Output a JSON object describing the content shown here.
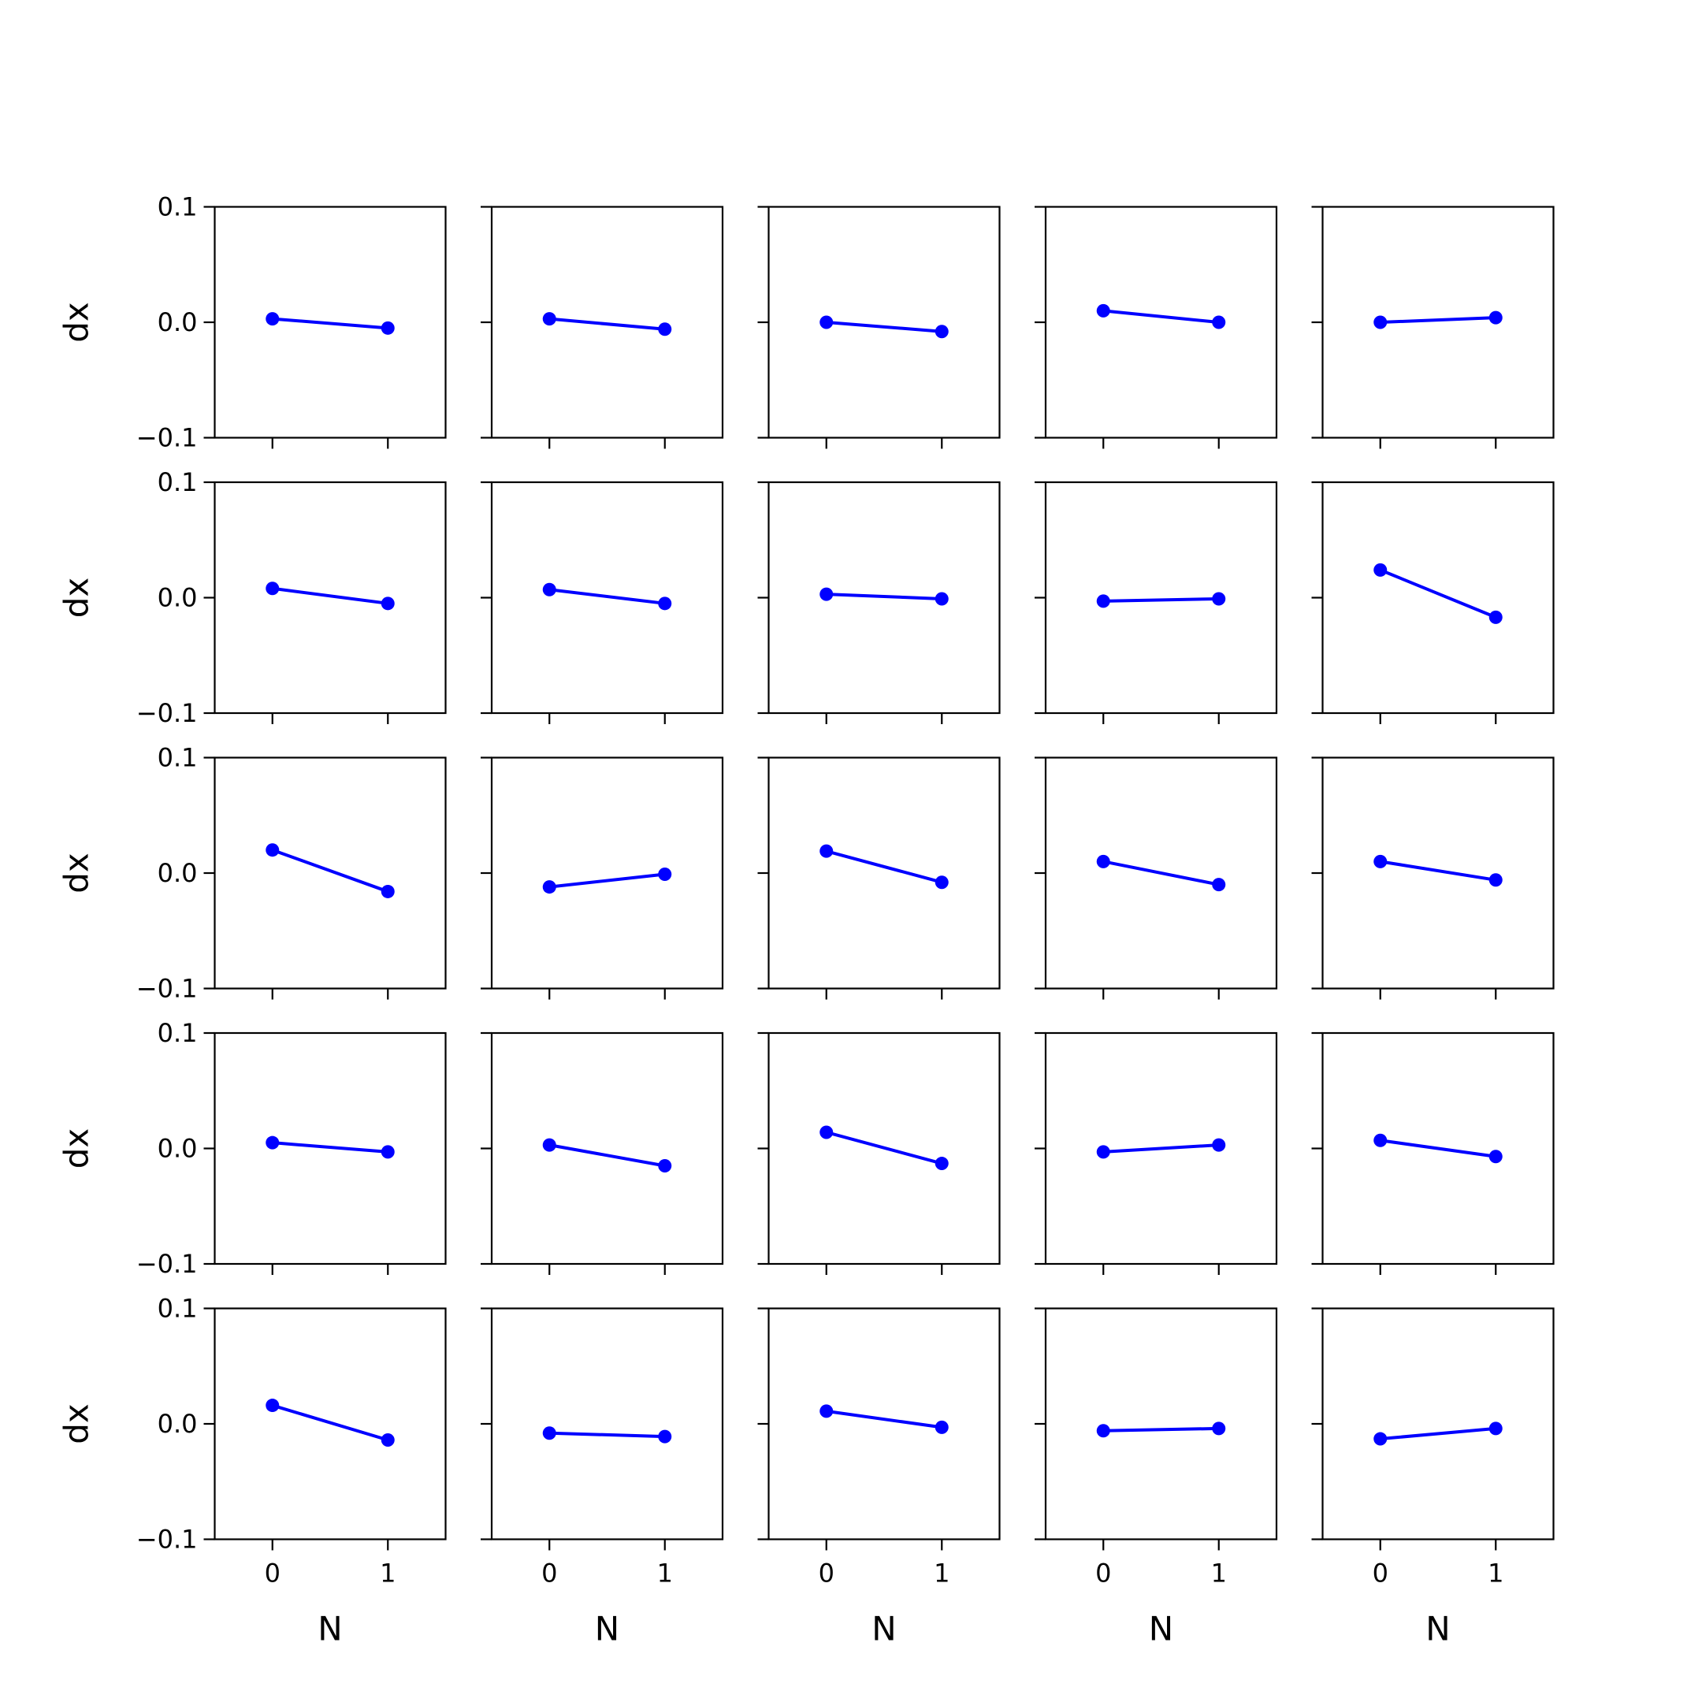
{
  "chart_data": {
    "type": "line",
    "layout": "5x5 grid of subplots",
    "x": [
      0,
      1
    ],
    "xticks": [
      "0",
      "1"
    ],
    "yticks": [
      "0.1",
      "0.0",
      "−0.1"
    ],
    "ytick_values": [
      0.1,
      0.0,
      -0.1
    ],
    "xlim": [
      -0.5,
      1.5
    ],
    "ylim": [
      -0.1,
      0.1
    ],
    "xlabel": "N",
    "ylabel": "dx",
    "grid": false,
    "line_color": "#0000ff",
    "marker": "circle",
    "subplots": [
      [
        [
          0.003,
          -0.005
        ],
        [
          0.003,
          -0.006
        ],
        [
          0.0,
          -0.008
        ],
        [
          0.01,
          0.0
        ],
        [
          0.0,
          0.004
        ]
      ],
      [
        [
          0.008,
          -0.005
        ],
        [
          0.007,
          -0.005
        ],
        [
          0.003,
          -0.001
        ],
        [
          -0.003,
          -0.001
        ],
        [
          0.024,
          -0.017
        ]
      ],
      [
        [
          0.02,
          -0.016
        ],
        [
          -0.012,
          -0.001
        ],
        [
          0.019,
          -0.008
        ],
        [
          0.01,
          -0.01
        ],
        [
          0.01,
          -0.006
        ]
      ],
      [
        [
          0.005,
          -0.003
        ],
        [
          0.003,
          -0.015
        ],
        [
          0.014,
          -0.013
        ],
        [
          -0.003,
          0.003
        ],
        [
          0.007,
          -0.007
        ]
      ],
      [
        [
          0.016,
          -0.014
        ],
        [
          -0.008,
          -0.011
        ],
        [
          0.011,
          -0.003
        ],
        [
          -0.006,
          -0.004
        ],
        [
          -0.013,
          -0.004
        ]
      ]
    ]
  }
}
